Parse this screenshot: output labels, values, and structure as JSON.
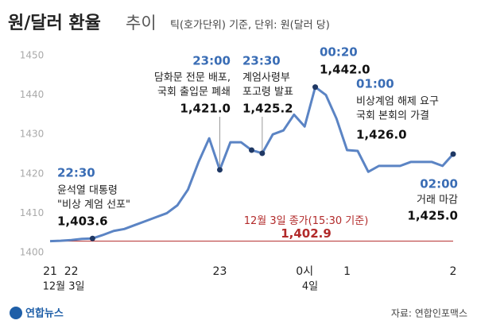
{
  "chart_data": {
    "type": "line",
    "title": "원/달러 환율",
    "title_suffix": "추이",
    "subtitle": "틱(호가단위) 기준, 단위: 원(달러 당)",
    "categories": [
      "21",
      null,
      "22",
      null,
      null,
      null,
      null,
      null,
      null,
      null,
      null,
      null,
      null,
      null,
      null,
      null,
      "23",
      null,
      null,
      null,
      null,
      null,
      null,
      null,
      "0시",
      null,
      null,
      null,
      "1",
      null,
      null,
      null,
      null,
      null,
      null,
      null,
      null,
      null,
      "2"
    ],
    "date_labels": [
      "12월 3일",
      "4일"
    ],
    "series": [
      {
        "color": "#5b84c4",
        "values": [
          1402.9,
          1403,
          1403.2,
          1403.5,
          1403.6,
          1404.5,
          1405.5,
          1406,
          1407,
          1408,
          1409,
          1410,
          1412,
          1416,
          1423,
          1429,
          1421.0,
          1428,
          1428,
          1426,
          1425.2,
          1430,
          1431,
          1435,
          1432,
          1442.0,
          1440,
          1434,
          1426.0,
          1425.8,
          1420.5,
          1422,
          1422,
          1422,
          1423,
          1423,
          1423,
          1422,
          1425.0
        ]
      }
    ],
    "ylim": [
      1398,
      1453
    ],
    "yticks": [
      1400,
      1410,
      1420,
      1430,
      1440,
      1450
    ],
    "grid": false,
    "marker_color": "#1f3864",
    "time_color": "#3a6db5",
    "annotations": [
      {
        "time": "22:30",
        "lines": [
          "윤석열 대통령",
          "\"비상 계엄 선포\""
        ],
        "value": 1403.6,
        "value_label": "1,403.6"
      },
      {
        "time": "23:00",
        "lines": [
          "담화문 전문 배포,",
          "국회 출입문 폐쇄"
        ],
        "value": 1421.0,
        "value_label": "1,421.0"
      },
      {
        "time": "23:30",
        "lines": [
          "계엄사령부",
          "포고령 발표"
        ],
        "value": 1425.2,
        "value_label": "1,425.2"
      },
      {
        "time": "00:20",
        "lines": [],
        "value": 1442.0,
        "value_label": "1,442.0"
      },
      {
        "time": "01:00",
        "lines": [
          "비상계엄 해제 요구",
          "국회 본회의 가결"
        ],
        "value": 1426.0,
        "value_label": "1,426.0"
      },
      {
        "time": "02:00",
        "lines": [
          "거래 마감"
        ],
        "value": 1425.0,
        "value_label": "1,425.0"
      }
    ],
    "reference": {
      "label": "12월 3일 종가(15:30 기준)",
      "value": 1402.9,
      "value_label": "1,402.9",
      "color": "#b22a2a"
    },
    "source": "자료: 연합인포맥스",
    "logo": "연합뉴스"
  }
}
